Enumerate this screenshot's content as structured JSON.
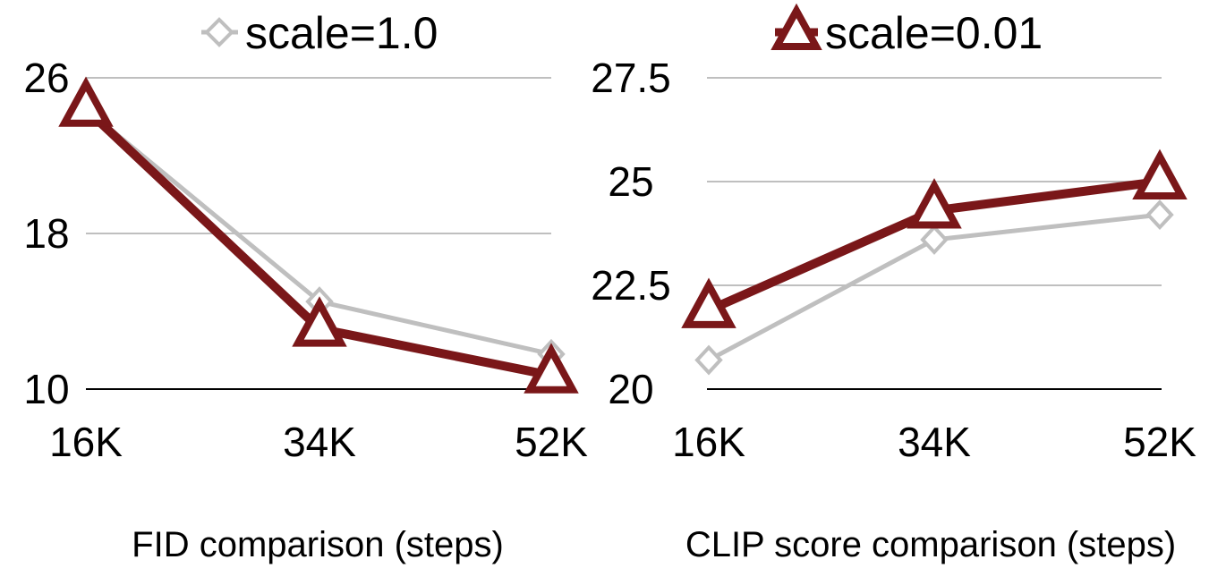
{
  "legend": {
    "entries": [
      {
        "label": "scale=1.0",
        "color": "#bfbfbf",
        "marker": "diamond"
      },
      {
        "label": "scale=0.01",
        "color": "#7a1719",
        "marker": "triangle"
      }
    ]
  },
  "chart_data": [
    {
      "type": "line",
      "title": "",
      "xlabel": "FID comparison (steps)",
      "ylabel": "",
      "categories": [
        "16K",
        "34K",
        "52K"
      ],
      "ylim": [
        10,
        26
      ],
      "yticks": [
        "10",
        "18",
        "26"
      ],
      "ytick_values": [
        10,
        18,
        26
      ],
      "grid": true,
      "legend_position": "top-left",
      "series": [
        {
          "name": "scale=1.0",
          "values": [
            24.4,
            14.5,
            11.8
          ],
          "color": "#bfbfbf",
          "marker": "diamond"
        },
        {
          "name": "scale=0.01",
          "values": [
            24.4,
            13.1,
            10.7
          ],
          "color": "#7a1719",
          "marker": "triangle"
        }
      ]
    },
    {
      "type": "line",
      "title": "",
      "xlabel": "CLIP score comparison (steps)",
      "ylabel": "",
      "categories": [
        "16K",
        "34K",
        "52K"
      ],
      "ylim": [
        20,
        27.5
      ],
      "yticks": [
        "20",
        "22.5",
        "25",
        "27.5"
      ],
      "ytick_values": [
        20,
        22.5,
        25,
        27.5
      ],
      "grid": true,
      "legend_position": "top-right",
      "series": [
        {
          "name": "scale=1.0",
          "values": [
            20.7,
            23.6,
            24.2
          ],
          "color": "#bfbfbf",
          "marker": "diamond"
        },
        {
          "name": "scale=0.01",
          "values": [
            21.9,
            24.3,
            25.0
          ],
          "color": "#7a1719",
          "marker": "triangle"
        }
      ]
    }
  ]
}
